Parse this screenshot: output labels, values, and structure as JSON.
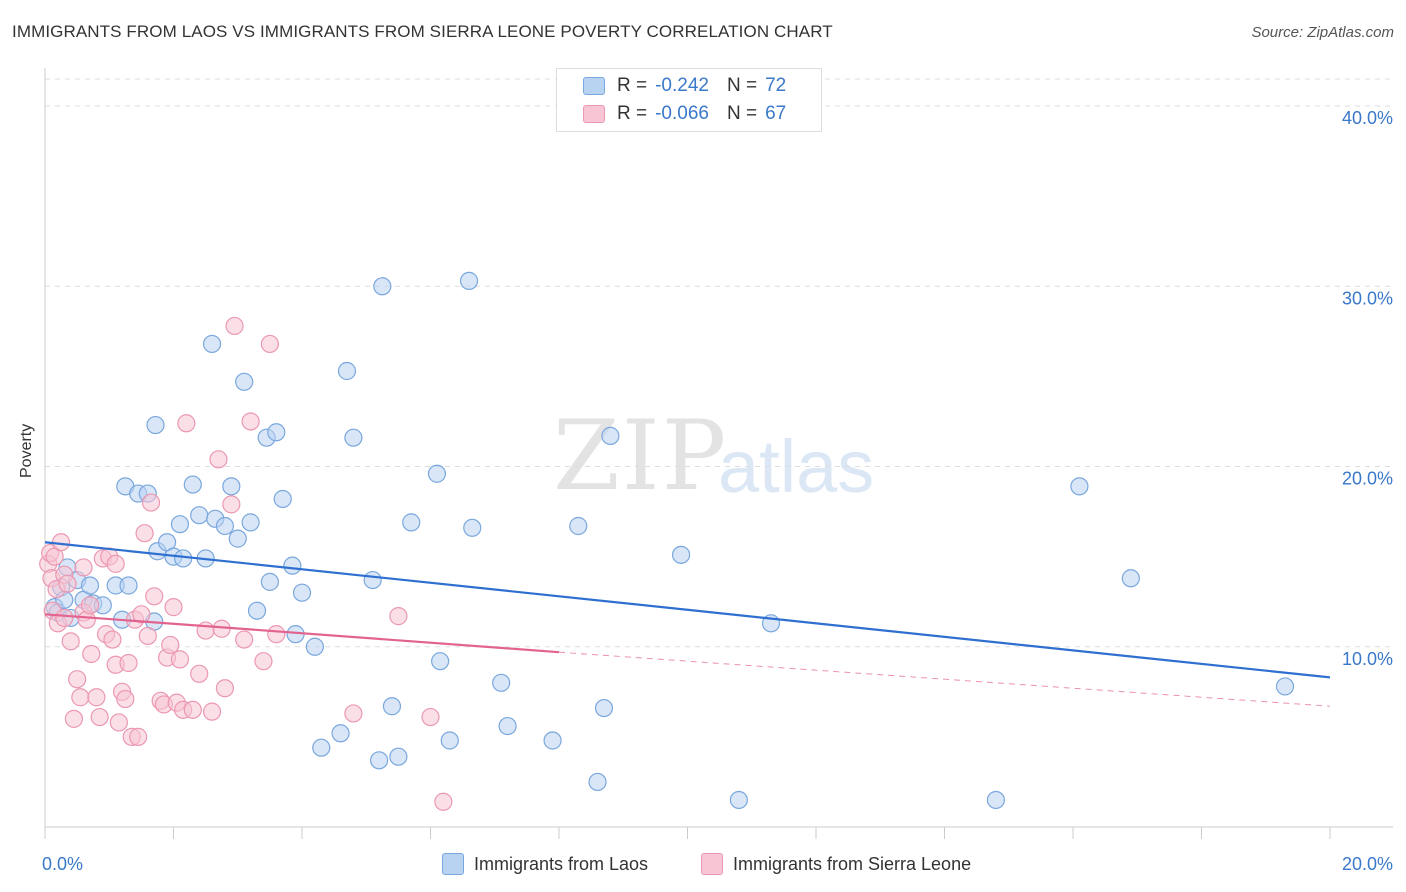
{
  "title": "IMMIGRANTS FROM LAOS VS IMMIGRANTS FROM SIERRA LEONE POVERTY CORRELATION CHART",
  "source": "Source: ZipAtlas.com",
  "watermark": {
    "zip": "ZIP",
    "atlas": "atlas"
  },
  "legend": {
    "rows": [
      {
        "r_label": "R =",
        "r_value": "-0.242",
        "n_label": "N =",
        "n_value": "72"
      },
      {
        "r_label": "R =",
        "r_value": "-0.066",
        "n_label": "N =",
        "n_value": "67"
      }
    ]
  },
  "bottom_legend": {
    "laos": "Immigrants from Laos",
    "sierra": "Immigrants from Sierra Leone"
  },
  "colors": {
    "laos_fill": "#b8d2f2",
    "laos_stroke": "#7aa7dd",
    "laos_line": "#2e6fd0",
    "sierra_fill": "#f8c5d4",
    "sierra_stroke": "#eb98b2",
    "sierra_line": "#e2638f",
    "axis_text": "#3a78c9",
    "grid": "#dddddd"
  },
  "chart_data": {
    "type": "scatter",
    "ylabel": "Poverty",
    "xlabel": "",
    "xlim": [
      0,
      20
    ],
    "ylim": [
      0,
      42
    ],
    "x_ticks": [
      0,
      2,
      4,
      6,
      8,
      10,
      12,
      14,
      16,
      18,
      20
    ],
    "x_tick_labels": {
      "left": "0.0%",
      "right": "20.0%"
    },
    "y_ticks": [
      10,
      20,
      30,
      40
    ],
    "y_tick_labels": [
      "10.0%",
      "20.0%",
      "30.0%",
      "40.0%"
    ],
    "series": [
      {
        "name": "Immigrants from Laos",
        "r": -0.242,
        "n": 72,
        "trend": {
          "x0": 0,
          "y0": 15.8,
          "x1": 20,
          "y1": 8.3,
          "dashed_to": null
        },
        "points": [
          [
            0.15,
            12.2
          ],
          [
            0.2,
            11.9
          ],
          [
            0.25,
            13.3
          ],
          [
            0.3,
            12.6
          ],
          [
            0.35,
            14.4
          ],
          [
            0.4,
            11.6
          ],
          [
            0.5,
            13.7
          ],
          [
            0.6,
            12.6
          ],
          [
            0.7,
            13.4
          ],
          [
            0.75,
            12.4
          ],
          [
            0.9,
            12.3
          ],
          [
            1.1,
            13.4
          ],
          [
            1.2,
            11.5
          ],
          [
            1.3,
            13.4
          ],
          [
            1.25,
            18.9
          ],
          [
            1.45,
            18.5
          ],
          [
            1.6,
            18.5
          ],
          [
            1.7,
            11.4
          ],
          [
            1.72,
            22.3
          ],
          [
            1.75,
            15.3
          ],
          [
            1.9,
            15.8
          ],
          [
            2.0,
            15.0
          ],
          [
            2.1,
            16.8
          ],
          [
            2.15,
            14.9
          ],
          [
            2.3,
            19.0
          ],
          [
            2.4,
            17.3
          ],
          [
            2.5,
            14.9
          ],
          [
            2.6,
            26.8
          ],
          [
            2.65,
            17.1
          ],
          [
            2.8,
            16.7
          ],
          [
            2.9,
            18.9
          ],
          [
            3.0,
            16.0
          ],
          [
            3.1,
            24.7
          ],
          [
            3.2,
            16.9
          ],
          [
            3.3,
            12.0
          ],
          [
            3.45,
            21.6
          ],
          [
            3.5,
            13.6
          ],
          [
            3.6,
            21.9
          ],
          [
            3.7,
            18.2
          ],
          [
            3.85,
            14.5
          ],
          [
            3.9,
            10.7
          ],
          [
            4.0,
            13.0
          ],
          [
            4.2,
            10.0
          ],
          [
            4.3,
            4.4
          ],
          [
            4.6,
            5.2
          ],
          [
            4.7,
            25.3
          ],
          [
            4.8,
            21.6
          ],
          [
            5.1,
            13.7
          ],
          [
            5.2,
            3.7
          ],
          [
            5.25,
            30.0
          ],
          [
            5.4,
            6.7
          ],
          [
            5.5,
            3.9
          ],
          [
            5.7,
            16.9
          ],
          [
            6.1,
            19.6
          ],
          [
            6.15,
            9.2
          ],
          [
            6.3,
            4.8
          ],
          [
            6.6,
            30.3
          ],
          [
            6.65,
            16.6
          ],
          [
            7.1,
            8.0
          ],
          [
            7.2,
            5.6
          ],
          [
            7.9,
            4.8
          ],
          [
            8.3,
            16.7
          ],
          [
            8.6,
            2.5
          ],
          [
            8.7,
            6.6
          ],
          [
            8.8,
            21.7
          ],
          [
            9.9,
            15.1
          ],
          [
            10.8,
            1.5
          ],
          [
            11.3,
            11.3
          ],
          [
            14.8,
            1.5
          ],
          [
            16.1,
            18.9
          ],
          [
            16.9,
            13.8
          ],
          [
            19.3,
            7.8
          ]
        ]
      },
      {
        "name": "Immigrants from Sierra Leone",
        "r": -0.066,
        "n": 67,
        "trend": {
          "x0": 0,
          "y0": 11.8,
          "x1": 8,
          "y1": 9.7,
          "dashed_to": {
            "x": 20,
            "y": 6.7
          }
        },
        "points": [
          [
            0.05,
            14.6
          ],
          [
            0.08,
            15.2
          ],
          [
            0.1,
            13.8
          ],
          [
            0.12,
            12.0
          ],
          [
            0.15,
            15.0
          ],
          [
            0.18,
            13.2
          ],
          [
            0.2,
            11.3
          ],
          [
            0.25,
            15.8
          ],
          [
            0.3,
            14.0
          ],
          [
            0.35,
            13.5
          ],
          [
            0.4,
            10.3
          ],
          [
            0.45,
            6.0
          ],
          [
            0.5,
            8.2
          ],
          [
            0.55,
            7.2
          ],
          [
            0.6,
            11.9
          ],
          [
            0.65,
            11.5
          ],
          [
            0.7,
            12.3
          ],
          [
            0.72,
            9.6
          ],
          [
            0.8,
            7.2
          ],
          [
            0.85,
            6.1
          ],
          [
            0.9,
            14.9
          ],
          [
            0.95,
            10.7
          ],
          [
            1.0,
            15.0
          ],
          [
            1.05,
            10.4
          ],
          [
            1.1,
            14.6
          ],
          [
            1.1,
            9.0
          ],
          [
            1.15,
            5.8
          ],
          [
            1.2,
            7.5
          ],
          [
            1.25,
            7.1
          ],
          [
            1.3,
            9.1
          ],
          [
            1.35,
            5.0
          ],
          [
            1.4,
            11.5
          ],
          [
            1.45,
            5.0
          ],
          [
            1.5,
            11.8
          ],
          [
            1.55,
            16.3
          ],
          [
            1.6,
            10.6
          ],
          [
            1.65,
            18.0
          ],
          [
            1.7,
            12.8
          ],
          [
            1.8,
            7.0
          ],
          [
            1.85,
            6.8
          ],
          [
            1.9,
            9.4
          ],
          [
            1.95,
            10.1
          ],
          [
            2.0,
            12.2
          ],
          [
            2.05,
            6.9
          ],
          [
            2.1,
            9.3
          ],
          [
            2.15,
            6.5
          ],
          [
            2.2,
            22.4
          ],
          [
            2.3,
            6.5
          ],
          [
            2.4,
            8.5
          ],
          [
            2.5,
            10.9
          ],
          [
            2.6,
            6.4
          ],
          [
            2.7,
            20.4
          ],
          [
            2.75,
            11.0
          ],
          [
            2.8,
            7.7
          ],
          [
            2.9,
            17.9
          ],
          [
            2.95,
            27.8
          ],
          [
            3.1,
            10.4
          ],
          [
            3.2,
            22.5
          ],
          [
            3.4,
            9.2
          ],
          [
            3.5,
            26.8
          ],
          [
            3.6,
            10.7
          ],
          [
            4.8,
            6.3
          ],
          [
            5.5,
            11.7
          ],
          [
            6.0,
            6.1
          ],
          [
            6.2,
            1.4
          ],
          [
            0.3,
            11.6
          ],
          [
            0.6,
            14.4
          ]
        ]
      }
    ]
  }
}
